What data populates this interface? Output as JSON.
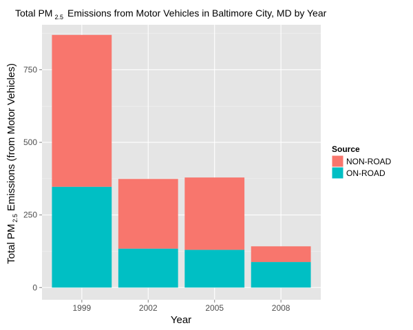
{
  "chart_data": {
    "type": "bar",
    "stacked": true,
    "title": {
      "prefix": "Total PM",
      "subscript": "2.5",
      "suffix": "Emissions from Motor Vehicles in Baltimore City, MD by Year"
    },
    "xlabel": "Year",
    "ylabel": {
      "prefix": "Total PM",
      "subscript": "2.5",
      "suffix": "Emissions (from Motor Vehicles)"
    },
    "categories": [
      "1999",
      "2002",
      "2005",
      "2008"
    ],
    "series": [
      {
        "name": "ON-ROAD",
        "color": "#00BFC4",
        "values": [
          347,
          134,
          130,
          88
        ]
      },
      {
        "name": "NON-ROAD",
        "color": "#F8766D",
        "values": [
          523,
          240,
          249,
          54
        ]
      }
    ],
    "ylim": [
      -42,
      905
    ],
    "yticks": [
      0,
      250,
      500,
      750
    ],
    "ytick_labels": [
      "0",
      "250",
      "500",
      "750"
    ],
    "grid": true,
    "legend": {
      "title": "Source",
      "placement": "right",
      "items": [
        {
          "label": "NON-ROAD",
          "color": "#F8766D"
        },
        {
          "label": "ON-ROAD",
          "color": "#00BFC4"
        }
      ]
    },
    "panel_background": "#E5E5E5",
    "grid_color": "#FFFFFF"
  }
}
